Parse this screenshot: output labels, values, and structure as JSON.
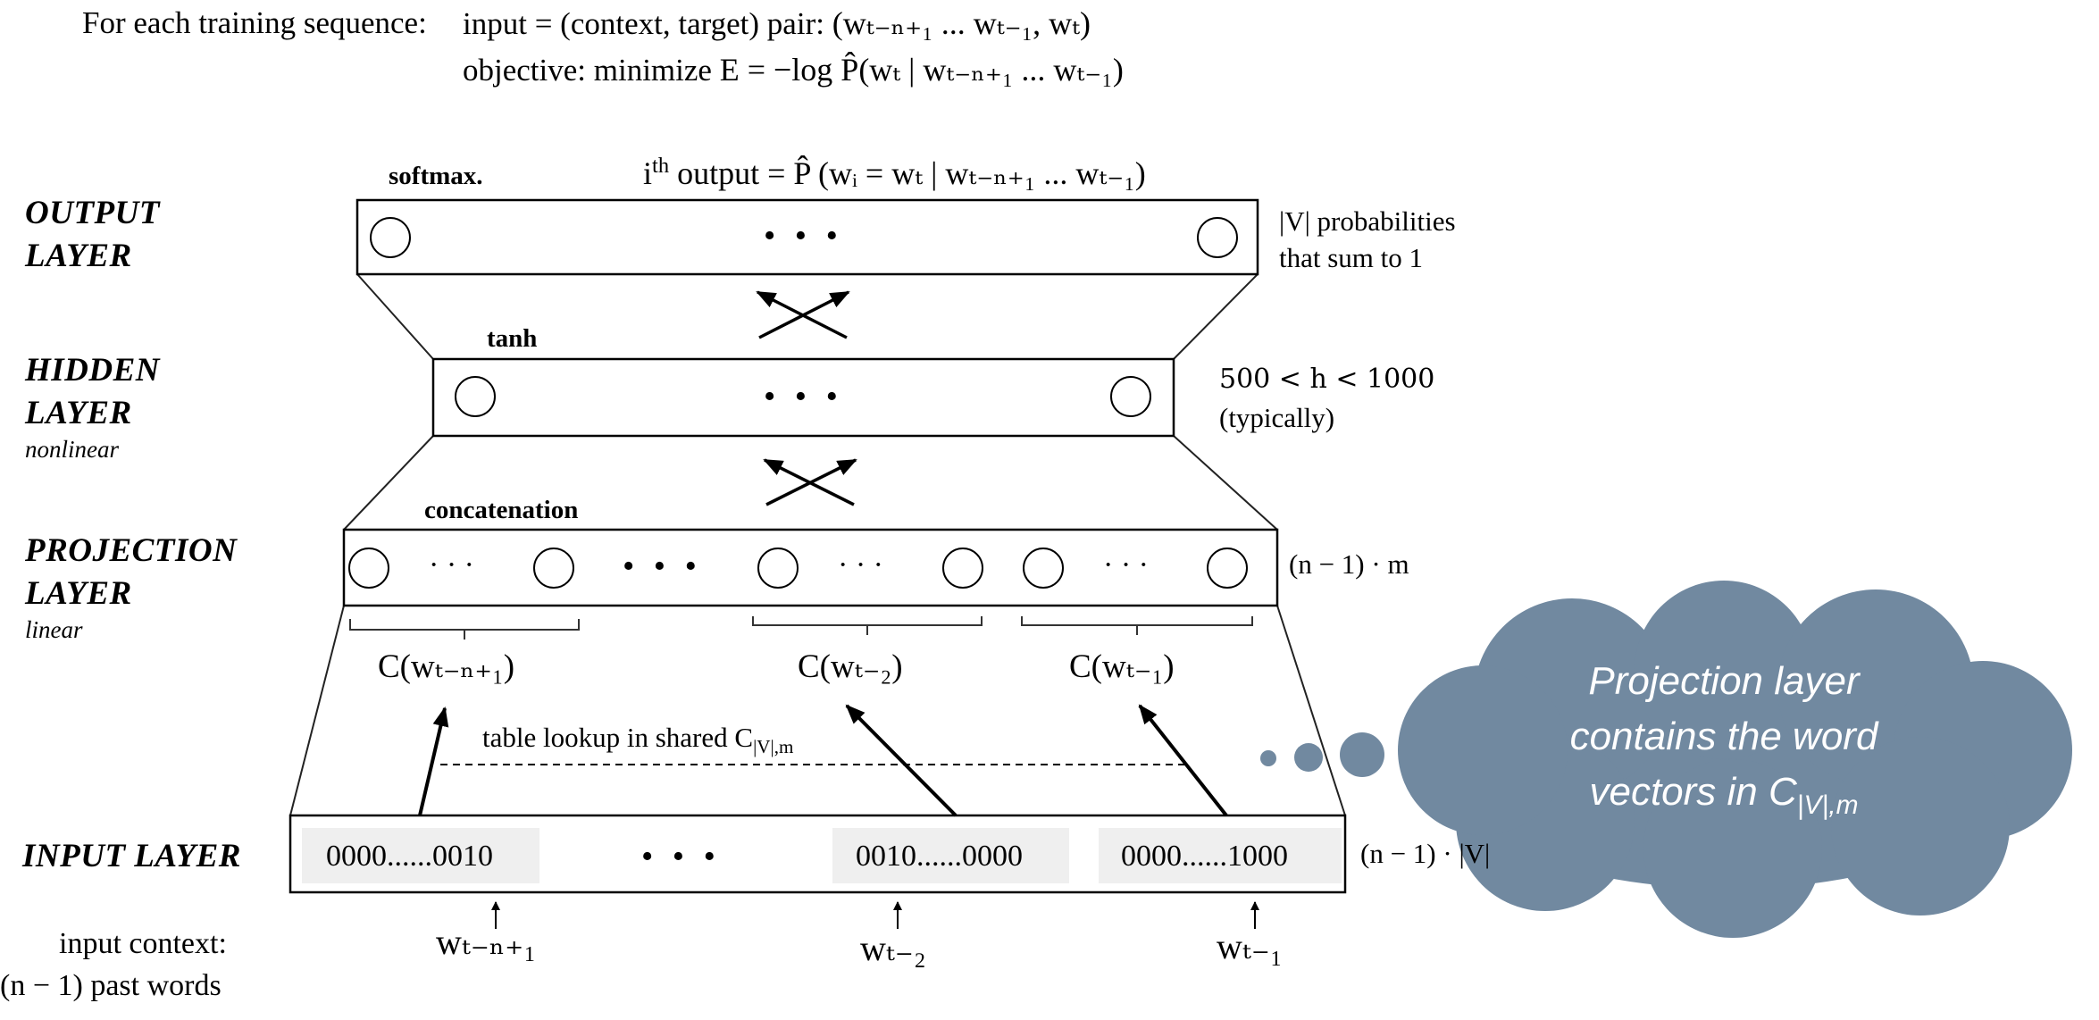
{
  "header": {
    "label": "For each training sequence:",
    "line1_prefix": "input = (context, target) pair: ",
    "line1_formula": "(wₜ₋ₙ₊₁ ... wₜ₋₁, wₜ)",
    "line2_prefix": "objective: minimize ",
    "line2_formula": "E = −log P̂(wₜ | wₜ₋ₙ₊₁ ... wₜ₋₁)"
  },
  "layers": {
    "output": {
      "label_line1": "OUTPUT",
      "label_line2": "LAYER",
      "activation": "softmax.",
      "note_line1": "|V| probabilities",
      "note_line2": "that sum to 1"
    },
    "output_formula_prefix": "i",
    "output_formula_sup": "th",
    "output_formula_rest": " output  = P̂ (wᵢ = wₜ | wₜ₋ₙ₊₁ ... wₜ₋₁)",
    "hidden": {
      "label_line1": "HIDDEN",
      "label_line2": "LAYER",
      "sublabel": "nonlinear",
      "activation": "tanh",
      "note_line1": "500 < h < 1000",
      "note_line2": "(typically)"
    },
    "projection": {
      "label_line1": "PROJECTION",
      "label_line2": "LAYER",
      "sublabel": "linear",
      "activation": "concatenation",
      "note": "(n − 1) · m"
    },
    "input": {
      "label": "INPUT LAYER",
      "note": "(n − 1) · |V|"
    }
  },
  "ellipsis_big": "• • •",
  "ellipsis_small": "·  ·  ·",
  "embeddings": [
    "C(wₜ₋ₙ₊₁)",
    "C(wₜ₋₂)",
    "C(wₜ₋₁)"
  ],
  "lookup": {
    "prefix": "table lookup in shared C",
    "subscript": "|V|,m"
  },
  "one_hot": [
    "0000......0010",
    "0010......0000",
    "0000......1000"
  ],
  "input_words": [
    "wₜ₋ₙ₊₁",
    "wₜ₋₂",
    "wₜ₋₁"
  ],
  "input_context": {
    "line1": "input context:",
    "line2": "(n − 1) past words"
  },
  "cloud": {
    "line1": "Projection layer",
    "line2": "contains the word",
    "line3_prefix": "vectors in C",
    "line3_sub": "|V|,m"
  },
  "colors": {
    "cloud": "#7189a0",
    "cloud_text": "#ffffff",
    "onehot_bg": "#efefef"
  }
}
